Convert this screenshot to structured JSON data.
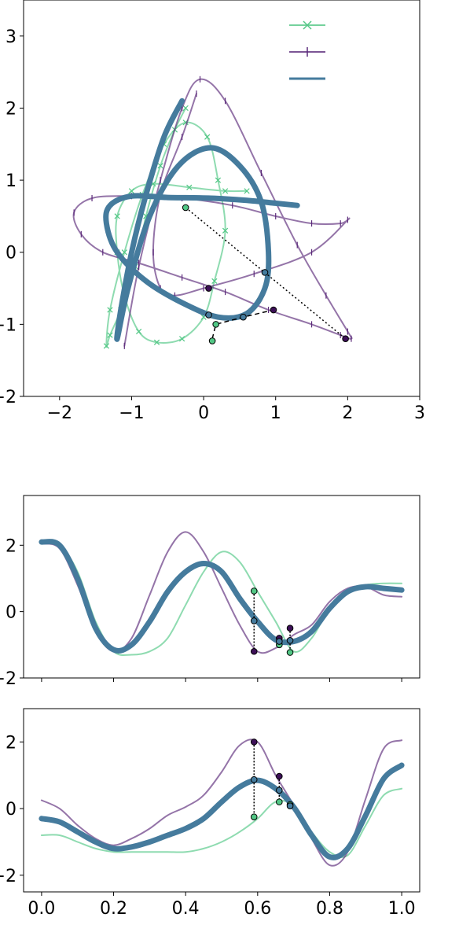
{
  "colors": {
    "green": "#52c785",
    "purple": "#5b2a7a",
    "blue": "#457b9d",
    "green_marker": "#3aa86a",
    "purple_marker": "#3d0f57",
    "blue_marker": "#3b6f90"
  },
  "chart_data": [
    {
      "type": "line",
      "title": "",
      "xlabel": "",
      "ylabel": "",
      "xlim": [
        -2.5,
        3
      ],
      "ylim": [
        -2,
        3.5
      ],
      "xticks": [
        -2,
        -1,
        0,
        1,
        2,
        3
      ],
      "xtick_labels": [
        "−2",
        "−1",
        "0",
        "1",
        "2",
        "3"
      ],
      "yticks": [
        -2,
        -1,
        0,
        1,
        2,
        3
      ],
      "ytick_labels": [
        "−2",
        "−1",
        "0",
        "1",
        "2",
        "3"
      ],
      "grid": false,
      "legend": {
        "placement": "top-right",
        "entries": [
          {
            "series": "green",
            "marker": "x",
            "label": ""
          },
          {
            "series": "purple",
            "marker": "|",
            "label": ""
          },
          {
            "series": "blue",
            "marker": "none",
            "label": ""
          }
        ]
      },
      "series": [
        {
          "key": "green",
          "marker": "x",
          "x": [
            -0.25,
            -0.4,
            -0.6,
            -0.8,
            -0.95,
            -1.15,
            -1.3,
            -1.35,
            -1.3,
            -1.1,
            -0.85,
            -0.55,
            -0.25,
            0.05,
            0.2,
            0.3,
            0.15,
            0.0,
            -0.3,
            -0.65,
            -0.9,
            -1.1,
            -1.2,
            -1.2,
            -1.0,
            -0.7,
            -0.2,
            0.3,
            0.6
          ],
          "y": [
            2.0,
            1.7,
            1.2,
            0.5,
            -0.2,
            -0.8,
            -1.15,
            -1.3,
            -0.8,
            0.0,
            0.8,
            1.5,
            1.8,
            1.6,
            1.0,
            0.3,
            -0.4,
            -0.9,
            -1.2,
            -1.25,
            -1.1,
            -0.6,
            0.0,
            0.5,
            0.85,
            0.95,
            0.9,
            0.85,
            0.85
          ]
        },
        {
          "key": "purple",
          "marker": "|",
          "x": [
            -1.1,
            -0.9,
            -0.6,
            -0.3,
            -0.05,
            0.3,
            0.8,
            1.3,
            1.7,
            2.0,
            2.05,
            1.9,
            1.5,
            0.9,
            0.3,
            -0.3,
            -0.9,
            -1.4,
            -1.7,
            -1.8,
            -1.55,
            -1.0,
            -0.3,
            0.4,
            1.0,
            1.5,
            1.9,
            2.0,
            1.5,
            0.7,
            0.0,
            -0.4,
            -0.6,
            -0.7,
            -0.6,
            -0.3,
            -0.1
          ],
          "y": [
            -1.3,
            -0.2,
            1.0,
            2.0,
            2.4,
            2.1,
            1.1,
            0.1,
            -0.6,
            -1.1,
            -1.2,
            -1.15,
            -1.0,
            -0.8,
            -0.55,
            -0.35,
            -0.15,
            0.0,
            0.25,
            0.55,
            0.75,
            0.78,
            0.75,
            0.65,
            0.5,
            0.4,
            0.4,
            0.45,
            0.0,
            -0.3,
            -0.5,
            -0.6,
            -0.5,
            0.0,
            0.8,
            1.6,
            2.2
          ]
        },
        {
          "key": "blue",
          "marker": "none",
          "x": [
            -0.3,
            -0.55,
            -0.8,
            -1.0,
            -1.15,
            -1.2,
            -1.05,
            -0.75,
            -0.35,
            0.1,
            0.5,
            0.8,
            0.9,
            0.85,
            0.6,
            0.2,
            -0.3,
            -0.8,
            -1.2,
            -1.35,
            -1.3,
            -1.0,
            -0.5,
            0.1,
            0.6,
            1.0,
            1.3
          ],
          "y": [
            2.1,
            1.6,
            0.8,
            0.0,
            -0.8,
            -1.2,
            -0.5,
            0.5,
            1.2,
            1.45,
            1.2,
            0.7,
            0.0,
            -0.5,
            -0.85,
            -0.9,
            -0.7,
            -0.4,
            0.0,
            0.4,
            0.65,
            0.78,
            0.76,
            0.75,
            0.72,
            0.68,
            0.65
          ]
        }
      ],
      "annotations": {
        "dotted_line": {
          "x": [
            -0.25,
            1.97
          ],
          "y": [
            0.62,
            -1.2
          ]
        },
        "dashed_line": {
          "x": [
            0.12,
            0.17,
            0.55,
            0.97
          ],
          "y": [
            -1.2,
            -1.0,
            -0.9,
            -0.8
          ]
        },
        "points_green": {
          "x": [
            -0.25,
            0.12,
            0.17
          ],
          "y": [
            0.62,
            -1.23,
            -1.0
          ]
        },
        "points_purple": {
          "x": [
            0.07,
            0.97,
            1.97
          ],
          "y": [
            -0.5,
            -0.8,
            -1.2
          ]
        },
        "points_blue": {
          "x": [
            0.07,
            0.55,
            0.85
          ],
          "y": [
            -0.87,
            -0.9,
            -0.28
          ]
        }
      }
    },
    {
      "type": "line",
      "title": "",
      "xlabel": "",
      "ylabel": "",
      "xlim": [
        -0.05,
        1.05
      ],
      "ylim": [
        -2,
        3.5
      ],
      "xticks": [
        0.0,
        0.2,
        0.4,
        0.6,
        0.8,
        1.0
      ],
      "xtick_labels": [],
      "yticks": [
        -2,
        0,
        2
      ],
      "ytick_labels": [
        "−2",
        "0",
        "2"
      ],
      "grid": false,
      "series": [
        {
          "key": "green",
          "x": [
            0.0,
            0.05,
            0.1,
            0.15,
            0.2,
            0.25,
            0.3,
            0.35,
            0.4,
            0.45,
            0.5,
            0.55,
            0.6,
            0.65,
            0.7,
            0.75,
            0.8,
            0.85,
            0.9,
            0.95,
            1.0
          ],
          "y": [
            2.1,
            2.0,
            1.2,
            -0.3,
            -1.2,
            -1.3,
            -1.2,
            -0.8,
            0.2,
            1.2,
            1.8,
            1.5,
            0.6,
            -0.3,
            -1.2,
            -0.8,
            0.1,
            0.6,
            0.8,
            0.85,
            0.85
          ]
        },
        {
          "key": "purple",
          "x": [
            0.0,
            0.05,
            0.1,
            0.15,
            0.2,
            0.25,
            0.3,
            0.35,
            0.4,
            0.45,
            0.5,
            0.55,
            0.6,
            0.65,
            0.7,
            0.75,
            0.8,
            0.85,
            0.9,
            0.95,
            1.0
          ],
          "y": [
            2.05,
            1.9,
            0.8,
            -0.6,
            -1.2,
            -0.8,
            0.5,
            1.8,
            2.4,
            1.8,
            0.7,
            -0.4,
            -1.2,
            -1.1,
            -0.7,
            -0.4,
            0.3,
            0.7,
            0.75,
            0.5,
            0.45
          ]
        },
        {
          "key": "blue",
          "x": [
            0.0,
            0.05,
            0.1,
            0.15,
            0.2,
            0.25,
            0.3,
            0.35,
            0.4,
            0.45,
            0.5,
            0.55,
            0.6,
            0.65,
            0.7,
            0.75,
            0.8,
            0.85,
            0.9,
            0.95,
            1.0
          ],
          "y": [
            2.1,
            2.0,
            1.0,
            -0.5,
            -1.15,
            -1.0,
            -0.3,
            0.6,
            1.2,
            1.45,
            1.2,
            0.4,
            -0.3,
            -0.85,
            -0.9,
            -0.6,
            0.1,
            0.6,
            0.75,
            0.7,
            0.65
          ]
        }
      ],
      "annotations": {
        "dotted_lines": [
          {
            "x": 0.59,
            "y": [
              0.62,
              -1.2
            ]
          },
          {
            "x": 0.66,
            "y": [
              -0.8,
              -1.0
            ]
          },
          {
            "x": 0.69,
            "y": [
              -0.5,
              -1.23
            ]
          }
        ],
        "points_green": {
          "x": [
            0.59,
            0.66,
            0.69
          ],
          "y": [
            0.62,
            -1.0,
            -1.23
          ]
        },
        "points_purple": {
          "x": [
            0.59,
            0.66,
            0.69
          ],
          "y": [
            -1.2,
            -0.8,
            -0.5
          ]
        },
        "points_blue": {
          "x": [
            0.59,
            0.66,
            0.69
          ],
          "y": [
            -0.28,
            -0.9,
            -0.87
          ]
        }
      }
    },
    {
      "type": "line",
      "title": "",
      "xlabel": "",
      "ylabel": "",
      "xlim": [
        -0.05,
        1.05
      ],
      "ylim": [
        -2.5,
        3
      ],
      "xticks": [
        0.0,
        0.2,
        0.4,
        0.6,
        0.8,
        1.0
      ],
      "xtick_labels": [
        "0.0",
        "0.2",
        "0.4",
        "0.6",
        "0.8",
        "1.0"
      ],
      "yticks": [
        -2,
        0,
        2
      ],
      "ytick_labels": [
        "−2",
        "0",
        "2"
      ],
      "grid": false,
      "series": [
        {
          "key": "green",
          "x": [
            0.0,
            0.05,
            0.1,
            0.15,
            0.2,
            0.25,
            0.3,
            0.35,
            0.4,
            0.45,
            0.5,
            0.55,
            0.6,
            0.65,
            0.7,
            0.75,
            0.8,
            0.85,
            0.9,
            0.95,
            1.0
          ],
          "y": [
            -0.8,
            -0.8,
            -1.0,
            -1.2,
            -1.3,
            -1.3,
            -1.3,
            -1.3,
            -1.3,
            -1.2,
            -1.0,
            -0.7,
            -0.3,
            0.2,
            0.1,
            -0.7,
            -1.3,
            -1.4,
            -0.5,
            0.4,
            0.6
          ]
        },
        {
          "key": "purple",
          "x": [
            0.0,
            0.05,
            0.1,
            0.15,
            0.2,
            0.25,
            0.3,
            0.35,
            0.4,
            0.45,
            0.5,
            0.55,
            0.6,
            0.65,
            0.7,
            0.75,
            0.8,
            0.85,
            0.9,
            0.95,
            1.0
          ],
          "y": [
            0.25,
            0.0,
            -0.5,
            -0.9,
            -1.1,
            -0.9,
            -0.6,
            -0.2,
            0.05,
            0.4,
            1.1,
            1.9,
            2.0,
            1.0,
            0.1,
            -0.9,
            -1.7,
            -1.3,
            0.3,
            1.8,
            2.05
          ]
        },
        {
          "key": "blue",
          "x": [
            0.0,
            0.05,
            0.1,
            0.15,
            0.2,
            0.25,
            0.3,
            0.35,
            0.4,
            0.45,
            0.5,
            0.55,
            0.6,
            0.65,
            0.7,
            0.75,
            0.8,
            0.85,
            0.9,
            0.95,
            1.0
          ],
          "y": [
            -0.3,
            -0.4,
            -0.7,
            -1.0,
            -1.2,
            -1.15,
            -1.0,
            -0.8,
            -0.6,
            -0.3,
            0.2,
            0.65,
            0.85,
            0.6,
            0.05,
            -0.8,
            -1.45,
            -1.2,
            -0.2,
            0.9,
            1.3
          ]
        }
      ],
      "annotations": {
        "dotted_lines": [
          {
            "x": 0.59,
            "y": [
              2.0,
              -0.25
            ]
          },
          {
            "x": 0.66,
            "y": [
              0.97,
              0.2
            ]
          },
          {
            "x": 0.69,
            "y": [
              0.12,
              0.08
            ]
          }
        ],
        "points_green": {
          "x": [
            0.59,
            0.66,
            0.69
          ],
          "y": [
            -0.25,
            0.2,
            0.12
          ]
        },
        "points_purple": {
          "x": [
            0.59,
            0.66
          ],
          "y": [
            2.0,
            0.97
          ]
        },
        "points_blue": {
          "x": [
            0.59,
            0.66,
            0.69
          ],
          "y": [
            0.87,
            0.55,
            0.08
          ]
        }
      }
    }
  ]
}
